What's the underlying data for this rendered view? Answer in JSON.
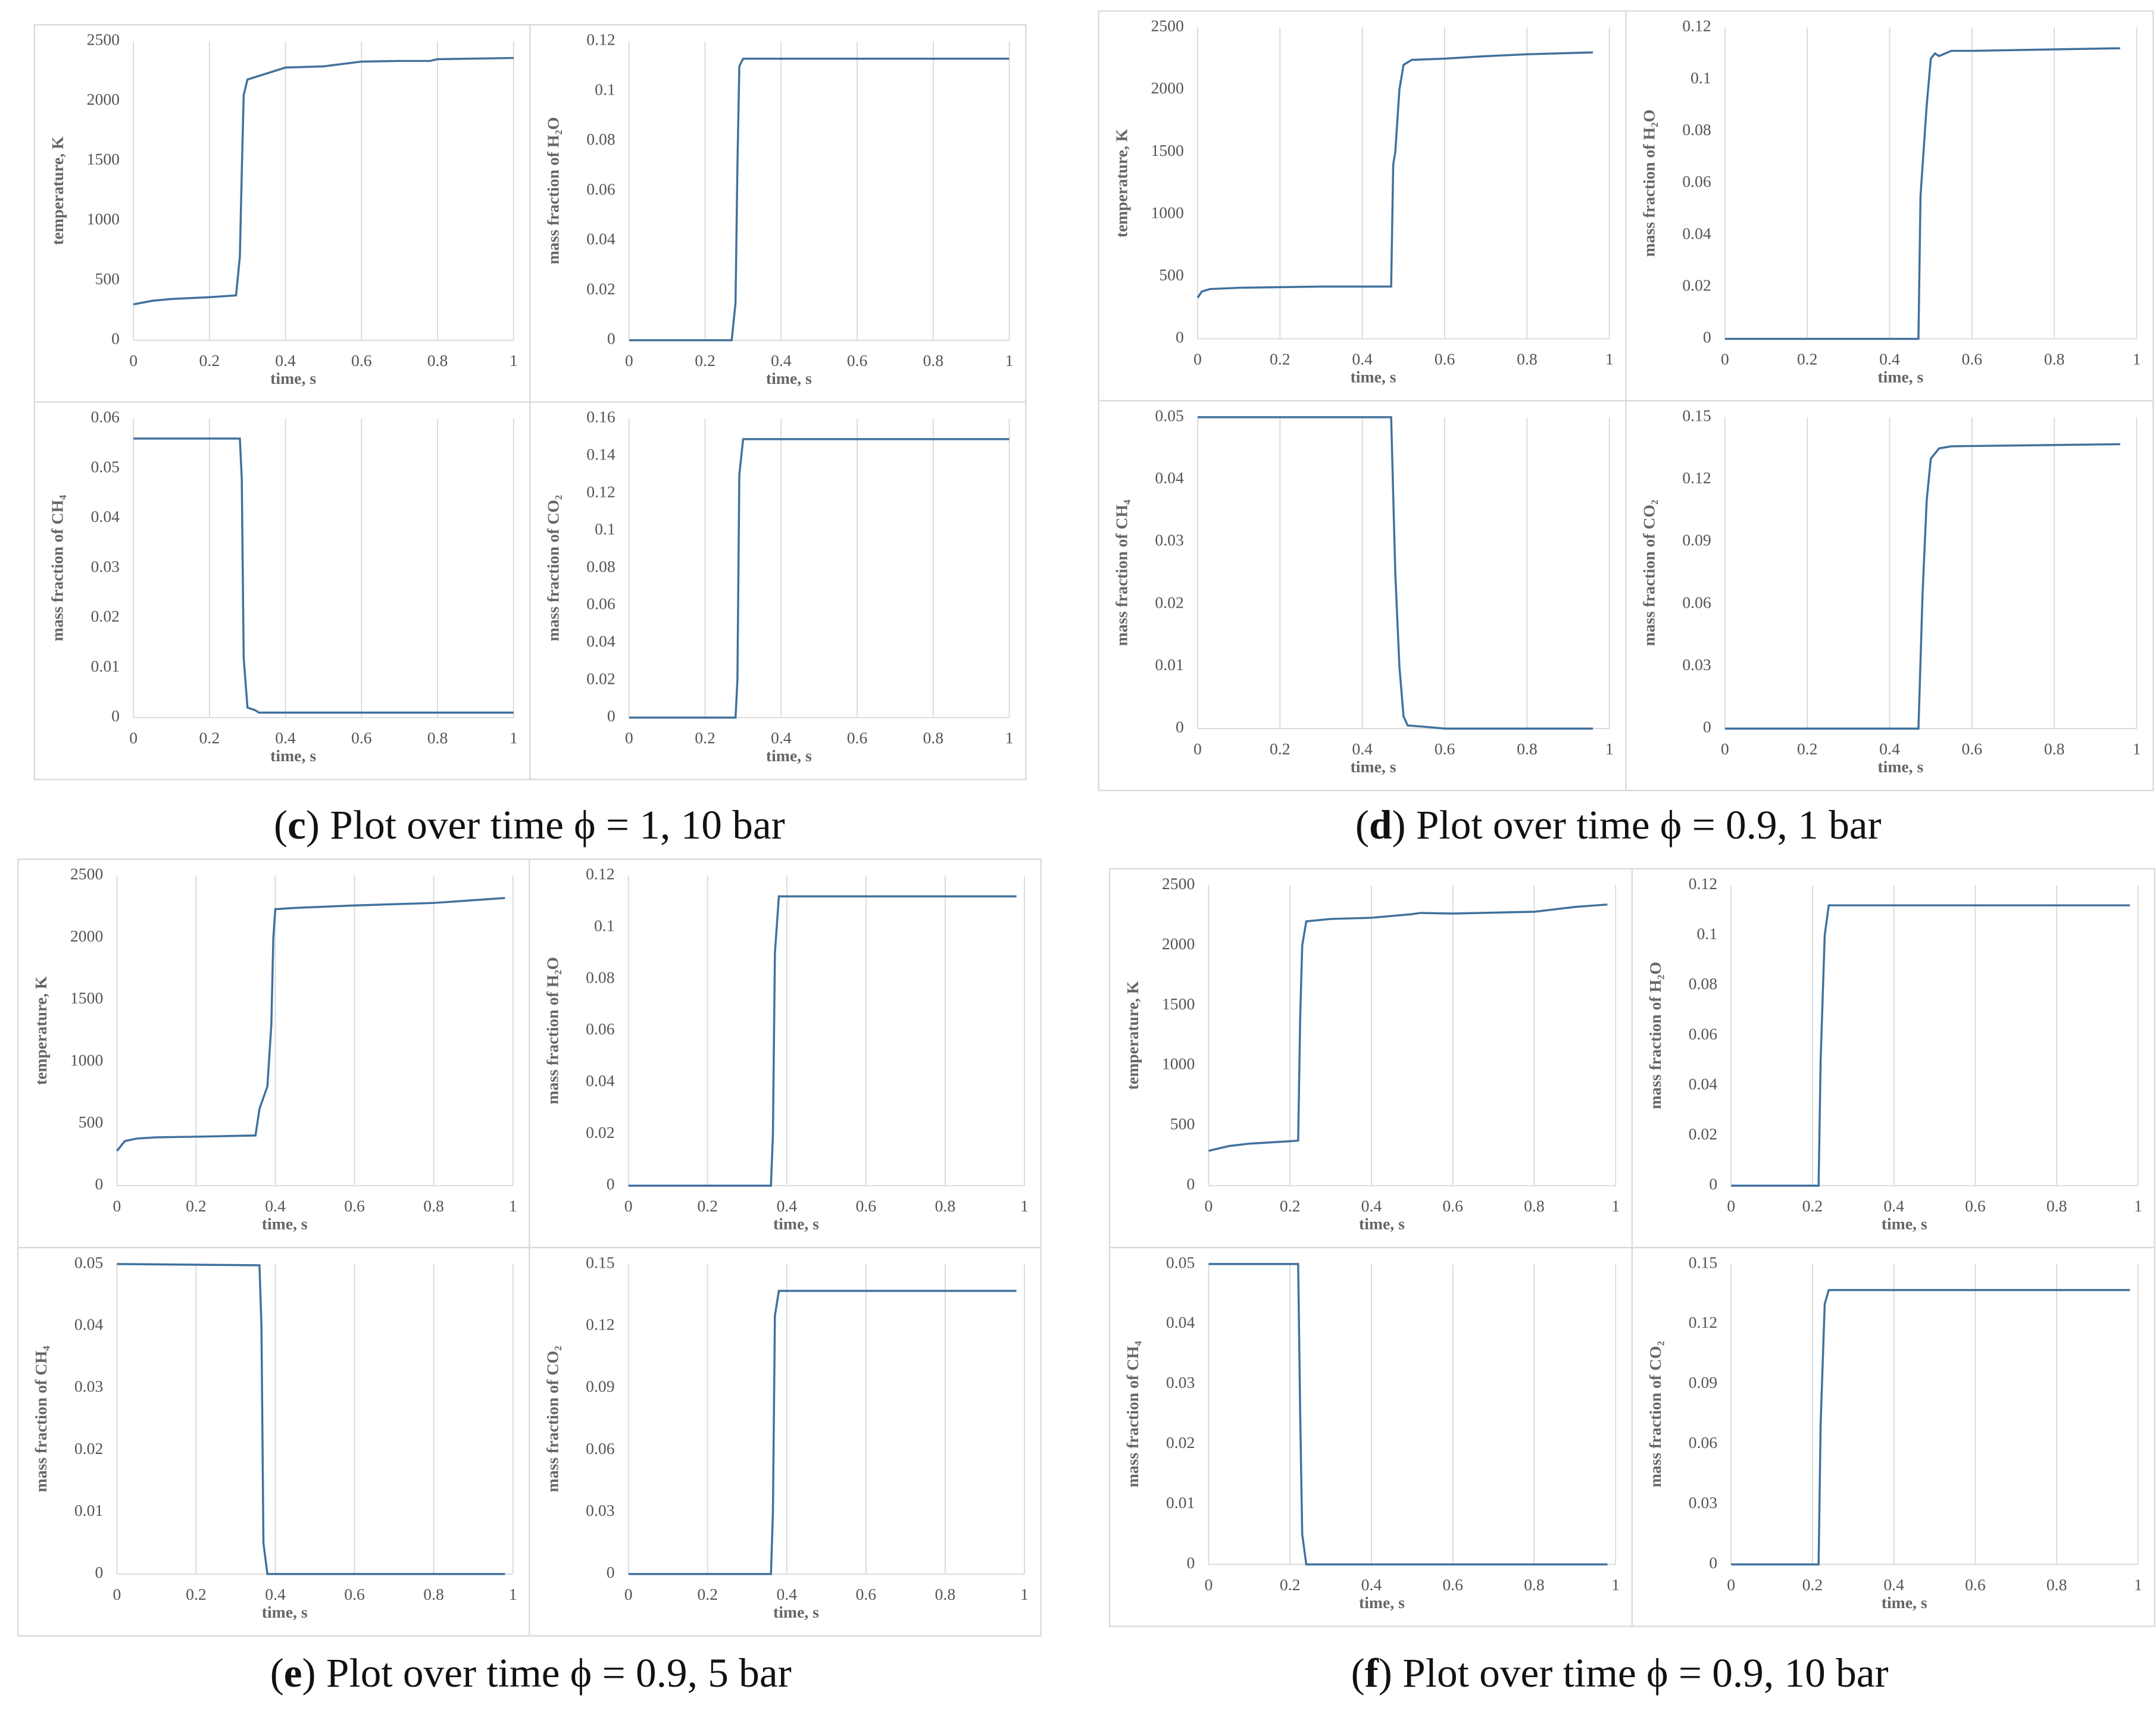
{
  "chart_data": [
    {
      "type": "line",
      "xlabel": "time, s",
      "ylabel": "temperature, K",
      "x": [
        0,
        0.05,
        0.1,
        0.2,
        0.27,
        0.28,
        0.285,
        0.29,
        0.3,
        0.32,
        0.35,
        0.4,
        0.5,
        0.6,
        0.7,
        0.78,
        0.8,
        0.9,
        1
      ],
      "values": [
        300,
        330,
        345,
        360,
        375,
        700,
        1400,
        2050,
        2180,
        2200,
        2230,
        2280,
        2290,
        2330,
        2335,
        2335,
        2350,
        2355,
        2360
      ],
      "color": "#41719c",
      "xlim": [
        0,
        1
      ],
      "xticks": [
        0,
        0.2,
        0.4,
        0.6,
        0.8,
        1
      ],
      "ylim": [
        0,
        2500
      ],
      "yticks": [
        0,
        500,
        1000,
        1500,
        2000,
        2500
      ],
      "grid": "x"
    },
    {
      "type": "line",
      "xlabel": "time, s",
      "ylabel": "mass fraction of H₂O",
      "x": [
        0,
        0.27,
        0.28,
        0.285,
        0.29,
        0.3,
        1
      ],
      "values": [
        0,
        0,
        0.015,
        0.07,
        0.11,
        0.113,
        0.113
      ],
      "color": "#41719c",
      "xlim": [
        0,
        1
      ],
      "xticks": [
        0,
        0.2,
        0.4,
        0.6,
        0.8,
        1
      ],
      "ylim": [
        0,
        0.12
      ],
      "yticks": [
        0,
        0.02,
        0.04,
        0.06,
        0.08,
        0.1,
        0.12
      ],
      "grid": "x"
    },
    {
      "type": "line",
      "xlabel": "time, s",
      "ylabel": "mass fraction of CH₄",
      "x": [
        0,
        0.28,
        0.285,
        0.29,
        0.3,
        0.32,
        0.33,
        1
      ],
      "values": [
        0.056,
        0.056,
        0.048,
        0.012,
        0.002,
        0.0015,
        0.001,
        0.001
      ],
      "color": "#41719c",
      "xlim": [
        0,
        1
      ],
      "xticks": [
        0,
        0.2,
        0.4,
        0.6,
        0.8,
        1
      ],
      "ylim": [
        0,
        0.06
      ],
      "yticks": [
        0,
        0.01,
        0.02,
        0.03,
        0.04,
        0.05,
        0.06
      ],
      "grid": "x"
    },
    {
      "type": "line",
      "xlabel": "time, s",
      "ylabel": "mass fraction of CO₂",
      "x": [
        0,
        0.28,
        0.285,
        0.29,
        0.3,
        1
      ],
      "values": [
        0,
        0,
        0.02,
        0.13,
        0.149,
        0.149
      ],
      "color": "#41719c",
      "xlim": [
        0,
        1
      ],
      "xticks": [
        0,
        0.2,
        0.4,
        0.6,
        0.8,
        1
      ],
      "ylim": [
        0,
        0.16
      ],
      "yticks": [
        0,
        0.02,
        0.04,
        0.06,
        0.08,
        0.1,
        0.12,
        0.14,
        0.16
      ],
      "grid": "x"
    },
    {
      "type": "line",
      "xlabel": "time, s",
      "ylabel": "temperature, K",
      "x": [
        0,
        0.01,
        0.03,
        0.1,
        0.2,
        0.3,
        0.47,
        0.475,
        0.48,
        0.49,
        0.5,
        0.52,
        0.6,
        0.7,
        0.8,
        0.96
      ],
      "values": [
        330,
        380,
        400,
        410,
        415,
        420,
        420,
        1400,
        1500,
        2000,
        2200,
        2240,
        2250,
        2270,
        2285,
        2300
      ],
      "color": "#41719c",
      "xlim": [
        0,
        1
      ],
      "xticks": [
        0,
        0.2,
        0.4,
        0.6,
        0.8,
        1
      ],
      "ylim": [
        0,
        2500
      ],
      "yticks": [
        0,
        500,
        1000,
        1500,
        2000,
        2500
      ],
      "grid": "x"
    },
    {
      "type": "line",
      "xlabel": "time, s",
      "ylabel": "mass fraction of H₂O",
      "x": [
        0,
        0.47,
        0.475,
        0.49,
        0.5,
        0.51,
        0.52,
        0.55,
        0.6,
        0.96
      ],
      "values": [
        0,
        0,
        0.055,
        0.09,
        0.108,
        0.11,
        0.109,
        0.111,
        0.111,
        0.112
      ],
      "color": "#41719c",
      "xlim": [
        0,
        1
      ],
      "xticks": [
        0,
        0.2,
        0.4,
        0.6,
        0.8,
        1
      ],
      "ylim": [
        0,
        0.12
      ],
      "yticks": [
        0,
        0.02,
        0.04,
        0.06,
        0.08,
        0.1,
        0.12
      ],
      "grid": "x"
    },
    {
      "type": "line",
      "xlabel": "time, s",
      "ylabel": "mass fraction of CH₄",
      "x": [
        0,
        0.47,
        0.48,
        0.49,
        0.5,
        0.51,
        0.55,
        0.6,
        0.96
      ],
      "values": [
        0.05,
        0.05,
        0.025,
        0.01,
        0.002,
        0.0005,
        0.0003,
        0,
        0
      ],
      "color": "#41719c",
      "xlim": [
        0,
        1
      ],
      "xticks": [
        0,
        0.2,
        0.4,
        0.6,
        0.8,
        1
      ],
      "ylim": [
        0,
        0.05
      ],
      "yticks": [
        0,
        0.01,
        0.02,
        0.03,
        0.04,
        0.05
      ],
      "grid": "x"
    },
    {
      "type": "line",
      "xlabel": "time, s",
      "ylabel": "mass fraction of CO₂",
      "x": [
        0,
        0.47,
        0.48,
        0.49,
        0.5,
        0.52,
        0.55,
        0.96
      ],
      "values": [
        0,
        0,
        0.065,
        0.11,
        0.13,
        0.135,
        0.136,
        0.137
      ],
      "color": "#41719c",
      "xlim": [
        0,
        1
      ],
      "xticks": [
        0,
        0.2,
        0.4,
        0.6,
        0.8,
        1
      ],
      "ylim": [
        0,
        0.15
      ],
      "yticks": [
        0,
        0.03,
        0.06,
        0.09,
        0.12,
        0.15
      ],
      "grid": "x"
    },
    {
      "type": "line",
      "xlabel": "time, s",
      "ylabel": "temperature, K",
      "x": [
        0,
        0.02,
        0.05,
        0.1,
        0.2,
        0.35,
        0.36,
        0.38,
        0.39,
        0.395,
        0.4,
        0.45,
        0.6,
        0.8,
        0.98
      ],
      "values": [
        280,
        360,
        380,
        390,
        395,
        405,
        620,
        800,
        1300,
        2000,
        2230,
        2240,
        2260,
        2280,
        2320
      ],
      "color": "#41719c",
      "xlim": [
        0,
        1
      ],
      "xticks": [
        0,
        0.2,
        0.4,
        0.6,
        0.8,
        1
      ],
      "ylim": [
        0,
        2500
      ],
      "yticks": [
        0,
        500,
        1000,
        1500,
        2000,
        2500
      ],
      "grid": "x"
    },
    {
      "type": "line",
      "xlabel": "time, s",
      "ylabel": "mass fraction of H₂O",
      "x": [
        0,
        0.36,
        0.365,
        0.37,
        0.38,
        0.98
      ],
      "values": [
        0,
        0,
        0.02,
        0.09,
        0.112,
        0.112
      ],
      "color": "#41719c",
      "xlim": [
        0,
        1
      ],
      "xticks": [
        0,
        0.2,
        0.4,
        0.6,
        0.8,
        1
      ],
      "ylim": [
        0,
        0.12
      ],
      "yticks": [
        0,
        0.02,
        0.04,
        0.06,
        0.08,
        0.1,
        0.12
      ],
      "grid": "x"
    },
    {
      "type": "line",
      "xlabel": "time, s",
      "ylabel": "mass fraction of CH₄",
      "x": [
        0,
        0.36,
        0.365,
        0.37,
        0.38,
        0.98
      ],
      "values": [
        0.05,
        0.0498,
        0.04,
        0.005,
        0,
        0
      ],
      "color": "#41719c",
      "xlim": [
        0,
        1
      ],
      "xticks": [
        0,
        0.2,
        0.4,
        0.6,
        0.8,
        1
      ],
      "ylim": [
        0,
        0.05
      ],
      "yticks": [
        0,
        0.01,
        0.02,
        0.03,
        0.04,
        0.05
      ],
      "grid": "x"
    },
    {
      "type": "line",
      "xlabel": "time, s",
      "ylabel": "mass fraction of CO₂",
      "x": [
        0,
        0.36,
        0.365,
        0.37,
        0.38,
        0.98
      ],
      "values": [
        0,
        0,
        0.03,
        0.125,
        0.137,
        0.137
      ],
      "color": "#41719c",
      "xlim": [
        0,
        1
      ],
      "xticks": [
        0,
        0.2,
        0.4,
        0.6,
        0.8,
        1
      ],
      "ylim": [
        0,
        0.15
      ],
      "yticks": [
        0,
        0.03,
        0.06,
        0.09,
        0.12,
        0.15
      ],
      "grid": "x"
    },
    {
      "type": "line",
      "xlabel": "time, s",
      "ylabel": "temperature, K",
      "x": [
        0,
        0.05,
        0.1,
        0.2,
        0.22,
        0.225,
        0.23,
        0.24,
        0.3,
        0.4,
        0.5,
        0.52,
        0.6,
        0.8,
        0.9,
        0.98
      ],
      "values": [
        290,
        330,
        350,
        370,
        375,
        1400,
        2000,
        2200,
        2220,
        2230,
        2260,
        2270,
        2265,
        2280,
        2320,
        2340
      ],
      "color": "#41719c",
      "xlim": [
        0,
        1
      ],
      "xticks": [
        0,
        0.2,
        0.4,
        0.6,
        0.8,
        1
      ],
      "ylim": [
        0,
        2500
      ],
      "yticks": [
        0,
        500,
        1000,
        1500,
        2000,
        2500
      ],
      "grid": "x"
    },
    {
      "type": "line",
      "xlabel": "time, s",
      "ylabel": "mass fraction of H₂O",
      "x": [
        0,
        0.215,
        0.22,
        0.23,
        0.24,
        0.98
      ],
      "values": [
        0,
        0,
        0.05,
        0.1,
        0.112,
        0.112
      ],
      "color": "#41719c",
      "xlim": [
        0,
        1
      ],
      "xticks": [
        0,
        0.2,
        0.4,
        0.6,
        0.8,
        1
      ],
      "ylim": [
        0,
        0.12
      ],
      "yticks": [
        0,
        0.02,
        0.04,
        0.06,
        0.08,
        0.1,
        0.12
      ],
      "grid": "x"
    },
    {
      "type": "line",
      "xlabel": "time, s",
      "ylabel": "mass fraction of CH₄",
      "x": [
        0,
        0.22,
        0.225,
        0.23,
        0.24,
        0.98
      ],
      "values": [
        0.05,
        0.05,
        0.025,
        0.005,
        0,
        0
      ],
      "color": "#41719c",
      "xlim": [
        0,
        1
      ],
      "xticks": [
        0,
        0.2,
        0.4,
        0.6,
        0.8,
        1
      ],
      "ylim": [
        0,
        0.05
      ],
      "yticks": [
        0,
        0.01,
        0.02,
        0.03,
        0.04,
        0.05
      ],
      "grid": "x"
    },
    {
      "type": "line",
      "xlabel": "time, s",
      "ylabel": "mass fraction of CO₂",
      "x": [
        0,
        0.215,
        0.22,
        0.23,
        0.24,
        0.98
      ],
      "values": [
        0,
        0,
        0.07,
        0.13,
        0.137,
        0.137
      ],
      "color": "#41719c",
      "xlim": [
        0,
        1
      ],
      "xticks": [
        0,
        0.2,
        0.4,
        0.6,
        0.8,
        1
      ],
      "ylim": [
        0,
        0.15
      ],
      "yticks": [
        0,
        0.03,
        0.06,
        0.09,
        0.12,
        0.15
      ],
      "grid": "x"
    }
  ],
  "captions": [
    "(c) Plot over time ϕ = 1, 10 bar",
    "(d) Plot over time ϕ = 0.9, 1 bar",
    "(e) Plot over time ϕ = 0.9, 5 bar",
    "(f) Plot over time ϕ = 0.9, 10 bar"
  ]
}
